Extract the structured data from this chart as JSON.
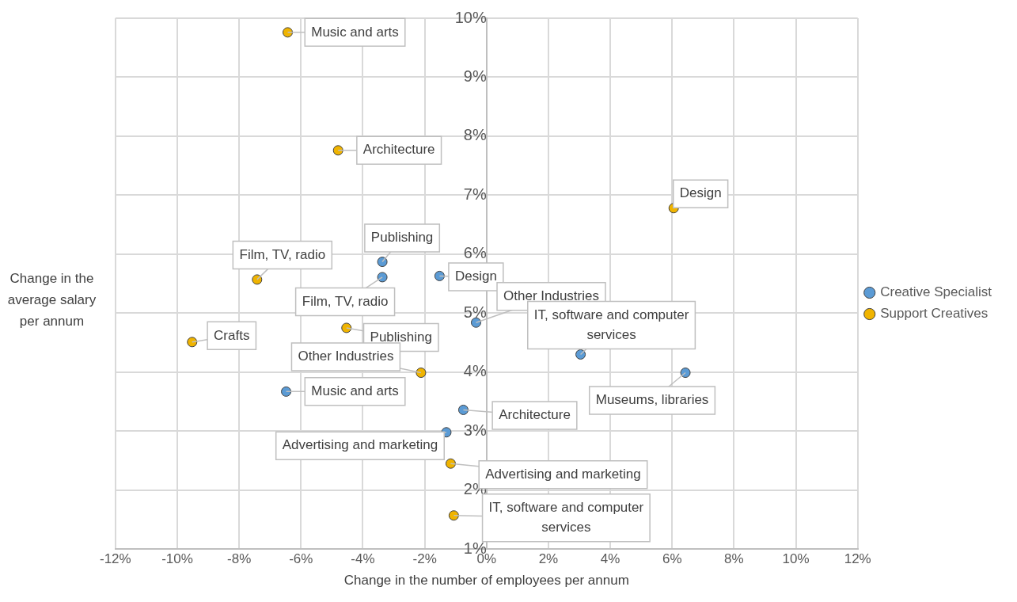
{
  "chart_data": {
    "type": "scatter",
    "xlabel": "Change in the number of employees per annum",
    "ylabel": "Change in the average salary per annum",
    "xlim": [
      -12,
      12
    ],
    "xticks": [
      {
        "value": -12,
        "label": "-12%"
      },
      {
        "value": -10,
        "label": "-10%"
      },
      {
        "value": -8,
        "label": "-8%"
      },
      {
        "value": -6,
        "label": "-6%"
      },
      {
        "value": -4,
        "label": "-4%"
      },
      {
        "value": -2,
        "label": "-2%"
      },
      {
        "value": 0,
        "label": "0%"
      },
      {
        "value": 2,
        "label": "2%"
      },
      {
        "value": 4,
        "label": "4%"
      },
      {
        "value": 6,
        "label": "6%"
      },
      {
        "value": 8,
        "label": "8%"
      },
      {
        "value": 10,
        "label": "10%"
      },
      {
        "value": 12,
        "label": "12%"
      }
    ],
    "ylim": [
      1,
      10
    ],
    "yticks": [
      {
        "value": 1,
        "label": "1%"
      },
      {
        "value": 2,
        "label": "2%"
      },
      {
        "value": 3,
        "label": "3%"
      },
      {
        "value": 4,
        "label": "4%"
      },
      {
        "value": 5,
        "label": "5%"
      },
      {
        "value": 6,
        "label": "6%"
      },
      {
        "value": 7,
        "label": "7%"
      },
      {
        "value": 8,
        "label": "8%"
      },
      {
        "value": 9,
        "label": "9%"
      },
      {
        "value": 10,
        "label": "10%"
      }
    ],
    "grid": true,
    "legend": "right",
    "marker": "circle",
    "series": [
      {
        "name": "Creative Specialist",
        "color": "#5b9bd5",
        "x": [
          -3.37,
          -3.37,
          -1.52,
          -0.34,
          3.04,
          6.43,
          -6.48,
          -0.75,
          -1.3
        ],
        "values": [
          5.87,
          5.61,
          5.63,
          4.84,
          4.3,
          3.99,
          3.67,
          3.36,
          2.98
        ],
        "value_labels": [
          "Publishing",
          "Film, TV, radio",
          "Design",
          "Other Industries",
          "IT, software and computer services",
          "Museums, libraries",
          "Music and arts",
          "Architecture",
          "Advertising and marketing"
        ]
      },
      {
        "name": "Support Creatives",
        "color": "#f0b400",
        "x": [
          -6.43,
          -4.8,
          6.05,
          -7.42,
          -9.52,
          -4.53,
          -2.12,
          -1.16,
          -1.06
        ],
        "values": [
          9.76,
          7.76,
          6.78,
          5.57,
          4.51,
          4.75,
          3.99,
          2.45,
          1.57
        ],
        "value_labels": [
          "Music and arts",
          "Architecture",
          "Design",
          "Film, TV, radio",
          "Crafts",
          "Publishing",
          "Other Industries",
          "Advertising and marketing",
          "IT, software and computer services"
        ]
      }
    ]
  }
}
